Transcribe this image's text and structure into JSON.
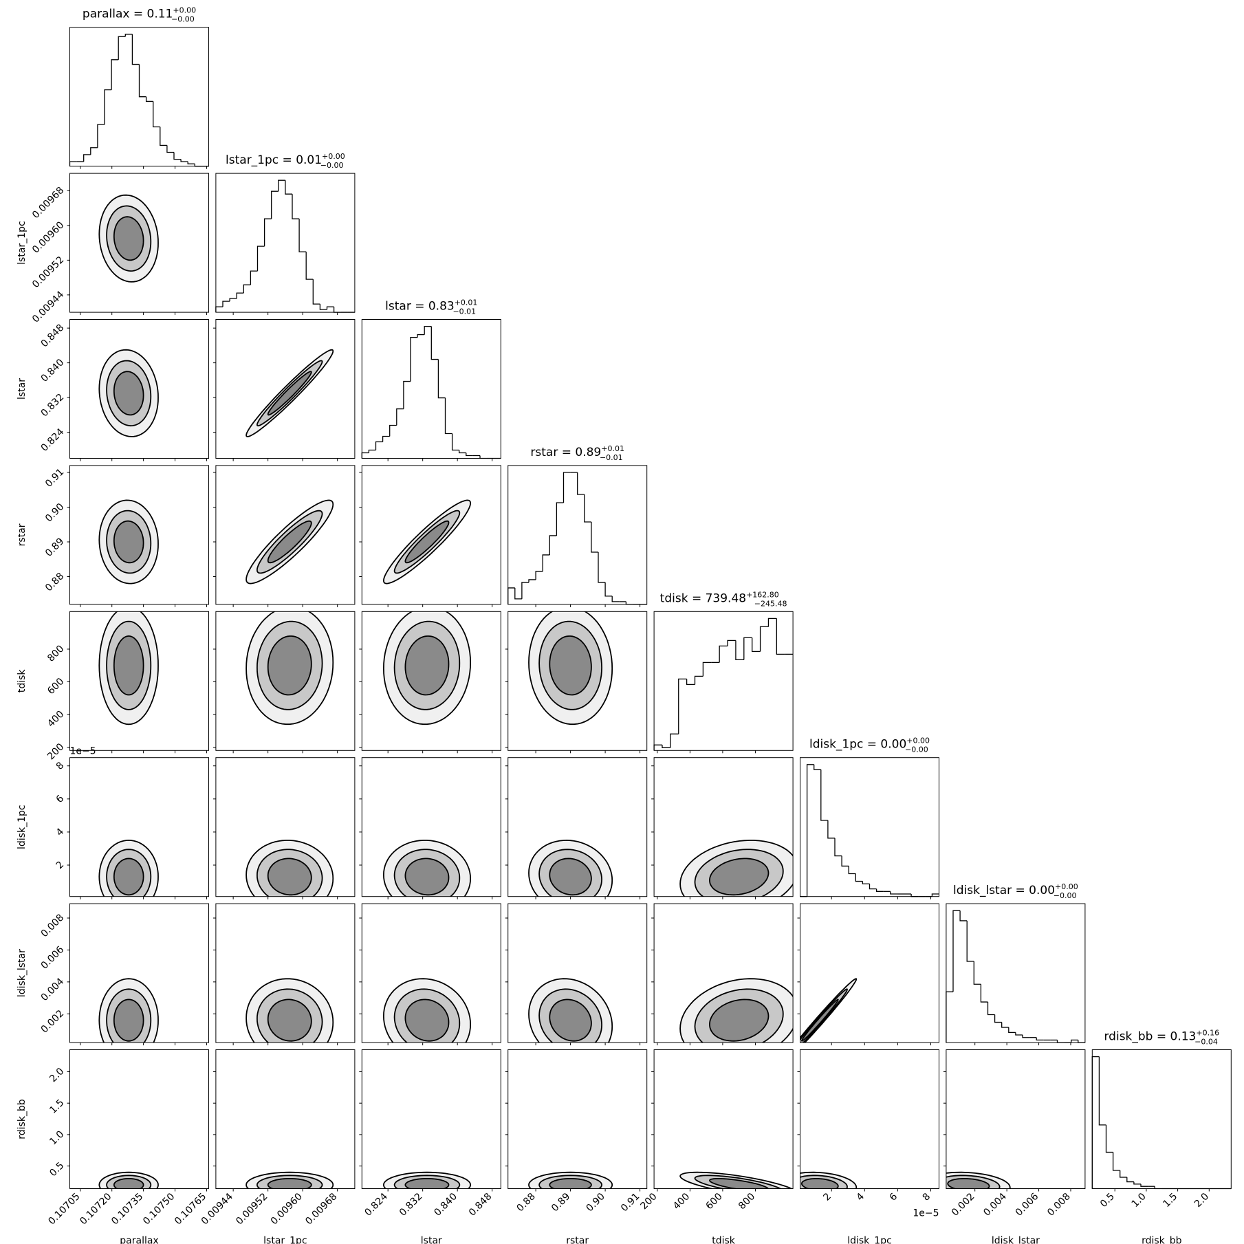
{
  "chart_data": {
    "type": "corner",
    "params": [
      {
        "name": "parallax",
        "title": "parallax = 0.11",
        "err_plus": "+0.00",
        "err_minus": "−0.00",
        "lim": [
          0.107,
          0.10766
        ],
        "ticks": [
          0.10705,
          {
            "value": 0.1072,
            "label": "0.10720"
          },
          0.10735,
          {
            "value": 0.1075,
            "label": "0.10750"
          },
          0.10765
        ],
        "center": 0.10728,
        "sigma": 7e-05,
        "hist": [
          2,
          2,
          5,
          8,
          18,
          33,
          46,
          56,
          57,
          44,
          30,
          28,
          17,
          9,
          6,
          3,
          2,
          1,
          0,
          0
        ]
      },
      {
        "name": "lstar_1pc",
        "title": "lstar_1pc = 0.01",
        "err_plus": "+0.00",
        "err_minus": "−0.00",
        "lim": [
          0.0094,
          0.00972
        ],
        "ticks": [
          0.00944,
          0.00952,
          {
            "value": 0.0096,
            "label": "0.00960"
          },
          0.00968
        ],
        "center": 0.00957,
        "sigma": 5e-05,
        "hist": [
          2,
          4,
          5,
          7,
          10,
          15,
          24,
          34,
          44,
          48,
          43,
          34,
          22,
          12,
          3,
          1,
          2,
          0,
          0,
          0
        ]
      },
      {
        "name": "lstar",
        "title": "lstar = 0.83",
        "err_plus": "+0.01",
        "err_minus": "−0.01",
        "lim": [
          0.818,
          0.85
        ],
        "ticks": [
          0.824,
          0.832,
          {
            "value": 0.84,
            "label": "0.840"
          },
          0.848
        ],
        "center": 0.833,
        "sigma": 0.005,
        "hist": [
          2,
          3,
          6,
          8,
          12,
          18,
          28,
          44,
          45,
          48,
          36,
          22,
          9,
          3,
          2,
          1,
          1,
          0,
          0,
          0
        ]
      },
      {
        "name": "rstar",
        "title": "rstar = 0.89",
        "err_plus": "+0.01",
        "err_minus": "−0.01",
        "lim": [
          0.872,
          0.912
        ],
        "ticks": [
          0.88,
          0.89,
          {
            "value": 0.9,
            "label": "0.90"
          },
          0.91
        ],
        "center": 0.89,
        "sigma": 0.006,
        "hist": [
          6,
          2,
          8,
          9,
          12,
          18,
          25,
          37,
          48,
          48,
          40,
          30,
          19,
          8,
          3,
          1,
          1,
          0,
          0,
          0
        ]
      },
      {
        "name": "tdisk",
        "title": "tdisk = 739.48",
        "err_plus": "+162.80",
        "err_minus": "−245.48",
        "lim": [
          180,
          1030
        ],
        "ticks": [
          200,
          400,
          600,
          800
        ],
        "center": 700,
        "sigma": 180,
        "hist": [
          2,
          1,
          6,
          26,
          24,
          27,
          32,
          32,
          38,
          40,
          33,
          41,
          36,
          45,
          48,
          35,
          35
        ]
      },
      {
        "name": "ldisk_1pc",
        "title": "ldisk_1pc = 0.00",
        "err_plus": "+0.00",
        "err_minus": "−0.00",
        "lim": [
          0.1,
          8.5
        ],
        "ticks": [
          2,
          4,
          6,
          8
        ],
        "offset_label": "1e−5",
        "center": 1.3,
        "sigma": 1.1,
        "hist": [
          0,
          52,
          50,
          30,
          23,
          16,
          12,
          9,
          6,
          5,
          3,
          2,
          2,
          1,
          1,
          1,
          0,
          0,
          0,
          1
        ]
      },
      {
        "name": "ldisk_lstar",
        "title": "ldisk_lstar = 0.00",
        "err_plus": "+0.00",
        "err_minus": "−0.00",
        "lim": [
          0.0002,
          0.0089
        ],
        "ticks": [
          0.002,
          0.004,
          0.006,
          0.008
        ],
        "center": 0.0016,
        "sigma": 0.0013,
        "hist": [
          20,
          52,
          48,
          32,
          23,
          16,
          11,
          8,
          6,
          4,
          3,
          2,
          2,
          1,
          1,
          1,
          0,
          0,
          1,
          0
        ]
      },
      {
        "name": "rdisk_bb",
        "title": "rdisk_bb = 0.13",
        "err_plus": "+0.16",
        "err_minus": "−0.04",
        "lim": [
          0.14,
          2.35
        ],
        "ticks": [
          0.5,
          {
            "value": 1,
            "label": "1.0"
          },
          1.5,
          {
            "value": 2,
            "label": "2.0"
          }
        ],
        "center": 0.2,
        "sigma": 0.1,
        "hist": [
          58,
          28,
          16,
          8,
          5,
          3,
          2,
          1,
          1,
          0,
          0,
          0,
          0,
          0,
          0,
          0,
          0,
          0,
          0,
          0
        ]
      }
    ],
    "correlation": [
      [],
      [
        -0.1
      ],
      [
        -0.1,
        0.97
      ],
      [
        -0.05,
        0.9,
        0.93
      ],
      [
        0.0,
        0.05,
        0.05,
        -0.05
      ],
      [
        0.0,
        -0.05,
        -0.05,
        -0.1,
        0.2
      ],
      [
        0.0,
        -0.05,
        -0.1,
        -0.15,
        0.2,
        0.99
      ],
      [
        0.0,
        0.0,
        0.0,
        0.0,
        -0.7,
        -0.2,
        -0.2
      ]
    ]
  }
}
